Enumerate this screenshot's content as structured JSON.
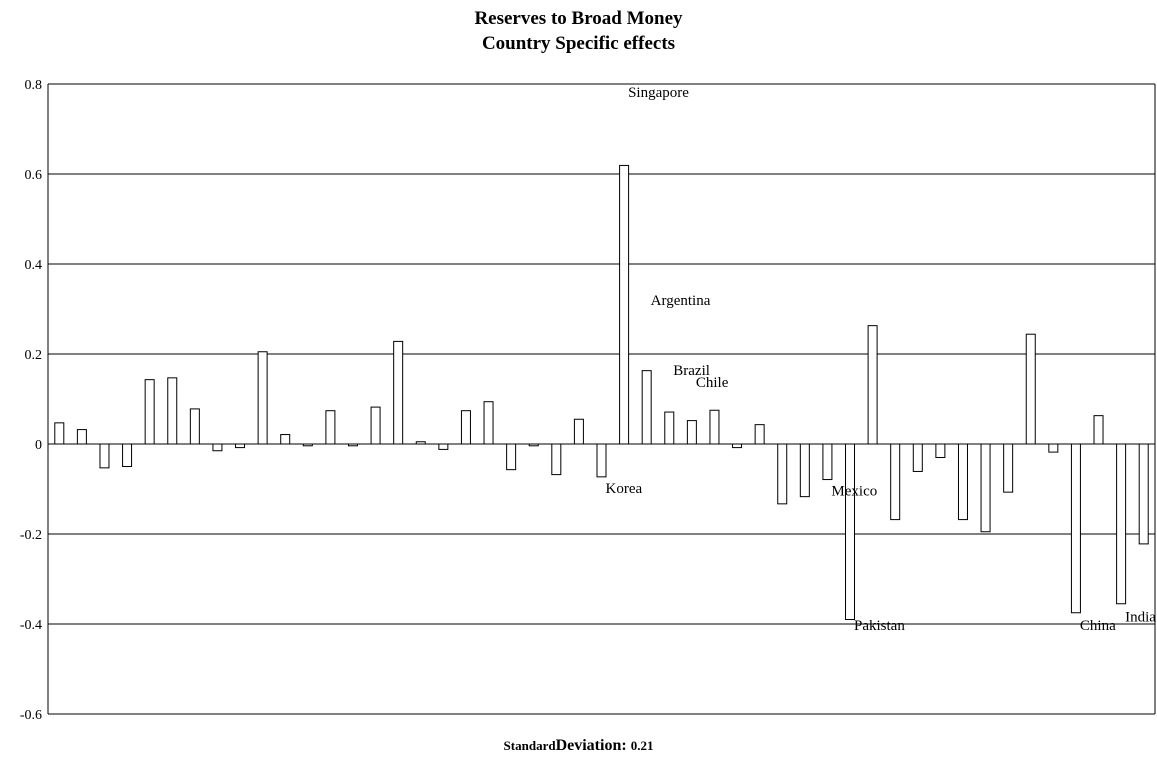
{
  "chart_data": {
    "type": "bar",
    "title": "Reserves to Broad Money",
    "subtitle": "Country Specific effects",
    "ylim": [
      -0.6,
      0.8
    ],
    "yticks": [
      "-0.6",
      "-0.4",
      "-0.2",
      "0",
      "0.2",
      "0.4",
      "0.6",
      "0.8"
    ],
    "grid": true,
    "values": [
      0.047,
      0.032,
      -0.053,
      -0.05,
      0.143,
      0.147,
      0.078,
      -0.015,
      -0.008,
      0.205,
      0.021,
      -0.004,
      0.074,
      -0.004,
      0.082,
      0.228,
      0.005,
      -0.012,
      0.074,
      0.094,
      -0.057,
      -0.004,
      -0.068,
      0.055,
      -0.073,
      0.619,
      0.163,
      0.071,
      0.052,
      0.075,
      -0.008,
      0.043,
      -0.133,
      -0.117,
      -0.079,
      -0.39,
      0.263,
      -0.168,
      -0.061,
      -0.03,
      -0.168,
      -0.195,
      -0.107,
      0.244,
      -0.018,
      -0.375,
      0.063,
      -0.355,
      -0.222
    ],
    "annotations": [
      {
        "text": "Singapore",
        "bar": 25,
        "y": 0.782
      },
      {
        "text": "Argentina",
        "bar": 26,
        "y": 0.32
      },
      {
        "text": "Brazil",
        "bar": 27,
        "y": 0.165
      },
      {
        "text": "Chile",
        "bar": 28,
        "y": 0.138
      },
      {
        "text": "Korea",
        "bar": 24,
        "y": -0.098
      },
      {
        "text": "Mexico",
        "bar": 34,
        "y": -0.103
      },
      {
        "text": "Pakistan",
        "bar": 35,
        "y": -0.402
      },
      {
        "text": "China",
        "bar": 45,
        "y": -0.402
      },
      {
        "text": "India",
        "bar": 47,
        "y": -0.383
      }
    ]
  },
  "footer": {
    "label_small": "Standard",
    "label_big": "Deviation:",
    "value": "0.21"
  }
}
